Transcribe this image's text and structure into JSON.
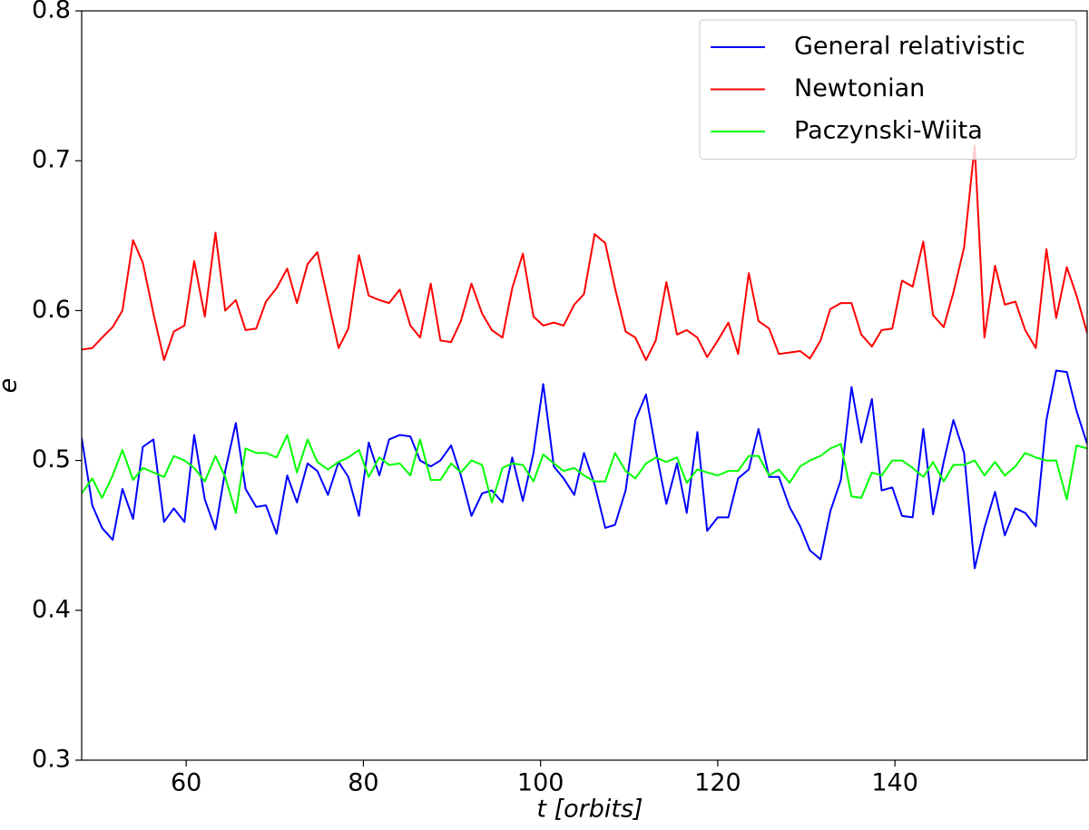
{
  "chart_data": {
    "type": "line",
    "x_label": "t [orbits]",
    "y_label": "e",
    "x": [
      48.2,
      49.4,
      50.5,
      51.7,
      52.8,
      54.0,
      55.1,
      56.3,
      57.5,
      58.6,
      59.8,
      60.9,
      62.1,
      63.3,
      64.4,
      65.6,
      66.7,
      67.9,
      69.0,
      70.2,
      71.4,
      72.5,
      73.7,
      74.8,
      76.0,
      77.2,
      78.3,
      79.5,
      80.6,
      81.8,
      82.9,
      84.1,
      85.3,
      86.4,
      87.6,
      88.7,
      89.9,
      91.0,
      92.2,
      93.4,
      94.5,
      95.7,
      96.8,
      98.0,
      99.2,
      100.3,
      101.5,
      102.6,
      103.8,
      104.9,
      106.1,
      107.3,
      108.4,
      109.6,
      110.7,
      111.9,
      113.0,
      114.2,
      115.4,
      116.5,
      117.7,
      118.8,
      120.0,
      121.2,
      122.3,
      123.5,
      124.6,
      125.8,
      126.9,
      128.1,
      129.3,
      130.4,
      131.6,
      132.7,
      133.9,
      135.1,
      136.2,
      137.4,
      138.5,
      139.7,
      140.8,
      142.0,
      143.2,
      144.3,
      145.5,
      146.6,
      147.8,
      149.0,
      150.1,
      151.3,
      152.4,
      153.6,
      154.7,
      155.9,
      157.1,
      158.2,
      159.4,
      160.5,
      161.7
    ],
    "series": [
      {
        "name": "General relativistic",
        "color": "#0000ff",
        "values": [
          0.515,
          0.47,
          0.455,
          0.447,
          0.481,
          0.461,
          0.509,
          0.514,
          0.459,
          0.468,
          0.459,
          0.517,
          0.474,
          0.454,
          0.493,
          0.525,
          0.481,
          0.469,
          0.47,
          0.451,
          0.49,
          0.472,
          0.498,
          0.493,
          0.477,
          0.499,
          0.489,
          0.463,
          0.512,
          0.49,
          0.514,
          0.517,
          0.516,
          0.5,
          0.496,
          0.5,
          0.51,
          0.49,
          0.463,
          0.478,
          0.48,
          0.472,
          0.502,
          0.473,
          0.505,
          0.551,
          0.496,
          0.488,
          0.477,
          0.505,
          0.484,
          0.455,
          0.457,
          0.48,
          0.527,
          0.544,
          0.507,
          0.471,
          0.498,
          0.465,
          0.519,
          0.453,
          0.462,
          0.462,
          0.488,
          0.494,
          0.521,
          0.489,
          0.489,
          0.469,
          0.456,
          0.44,
          0.434,
          0.466,
          0.487,
          0.549,
          0.512,
          0.541,
          0.48,
          0.482,
          0.463,
          0.462,
          0.521,
          0.464,
          0.499,
          0.527,
          0.505,
          0.428,
          0.455,
          0.479,
          0.45,
          0.468,
          0.465,
          0.456,
          0.527,
          0.56,
          0.559,
          0.533,
          0.511
        ]
      },
      {
        "name": "Newtonian",
        "color": "#ff0000",
        "values": [
          0.574,
          0.575,
          0.582,
          0.589,
          0.6,
          0.647,
          0.632,
          0.598,
          0.567,
          0.586,
          0.59,
          0.633,
          0.596,
          0.652,
          0.6,
          0.607,
          0.587,
          0.588,
          0.606,
          0.615,
          0.628,
          0.605,
          0.631,
          0.639,
          0.607,
          0.575,
          0.588,
          0.637,
          0.61,
          0.607,
          0.605,
          0.614,
          0.59,
          0.582,
          0.618,
          0.58,
          0.579,
          0.593,
          0.618,
          0.598,
          0.587,
          0.582,
          0.615,
          0.638,
          0.596,
          0.59,
          0.592,
          0.59,
          0.604,
          0.611,
          0.651,
          0.645,
          0.615,
          0.586,
          0.582,
          0.567,
          0.58,
          0.619,
          0.584,
          0.587,
          0.582,
          0.569,
          0.58,
          0.592,
          0.571,
          0.625,
          0.593,
          0.588,
          0.571,
          0.572,
          0.573,
          0.568,
          0.58,
          0.601,
          0.605,
          0.605,
          0.584,
          0.576,
          0.587,
          0.588,
          0.62,
          0.616,
          0.646,
          0.597,
          0.589,
          0.612,
          0.642,
          0.71,
          0.582,
          0.63,
          0.604,
          0.606,
          0.587,
          0.575,
          0.641,
          0.595,
          0.629,
          0.61,
          0.585
        ]
      },
      {
        "name": "Paczynski-Wiita",
        "color": "#00ff00",
        "values": [
          0.478,
          0.488,
          0.475,
          0.49,
          0.507,
          0.487,
          0.495,
          0.492,
          0.489,
          0.503,
          0.5,
          0.495,
          0.486,
          0.503,
          0.489,
          0.465,
          0.508,
          0.505,
          0.505,
          0.502,
          0.517,
          0.492,
          0.514,
          0.499,
          0.494,
          0.499,
          0.502,
          0.507,
          0.489,
          0.502,
          0.497,
          0.498,
          0.49,
          0.514,
          0.487,
          0.487,
          0.498,
          0.492,
          0.5,
          0.497,
          0.472,
          0.495,
          0.498,
          0.497,
          0.486,
          0.504,
          0.498,
          0.493,
          0.495,
          0.49,
          0.486,
          0.486,
          0.505,
          0.493,
          0.488,
          0.498,
          0.502,
          0.499,
          0.502,
          0.485,
          0.494,
          0.492,
          0.49,
          0.493,
          0.493,
          0.503,
          0.503,
          0.49,
          0.494,
          0.485,
          0.496,
          0.5,
          0.503,
          0.508,
          0.511,
          0.476,
          0.475,
          0.492,
          0.49,
          0.5,
          0.5,
          0.495,
          0.489,
          0.499,
          0.486,
          0.497,
          0.497,
          0.5,
          0.49,
          0.499,
          0.49,
          0.496,
          0.505,
          0.502,
          0.5,
          0.5,
          0.474,
          0.51,
          0.508
        ]
      }
    ],
    "xlim": [
      48.2,
      161.7
    ],
    "ylim": [
      0.3,
      0.8
    ],
    "xticks": [
      60,
      80,
      100,
      120,
      140
    ],
    "yticks": [
      0.3,
      0.4,
      0.5,
      0.6,
      0.7,
      0.8
    ],
    "legend": "upper right",
    "grid": false
  }
}
